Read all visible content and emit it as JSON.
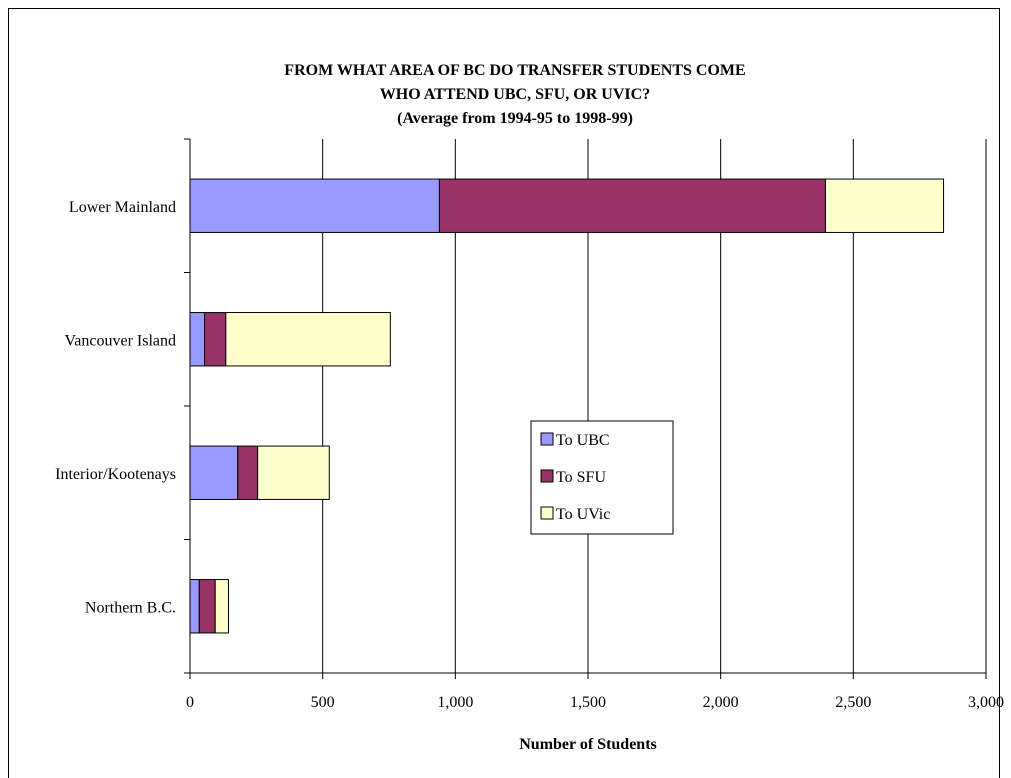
{
  "chart_data": {
    "type": "bar",
    "orientation": "horizontal",
    "stacked": true,
    "title_lines": [
      "FROM WHAT AREA OF BC DO TRANSFER STUDENTS COME",
      "WHO ATTEND UBC, SFU, OR UVIC?",
      "(Average from 1994-95 to 1998-99)"
    ],
    "xlabel": "Number of Students",
    "ylabel": "",
    "xlim": [
      0,
      3000
    ],
    "xticks": [
      0,
      500,
      1000,
      1500,
      2000,
      2500,
      3000
    ],
    "xtick_labels": [
      "0",
      "500",
      "1,000",
      "1,500",
      "2,000",
      "2,500",
      "3,000"
    ],
    "categories": [
      "Lower Mainland",
      "Vancouver Island",
      "Interior/Kootenays",
      "Northern B.C."
    ],
    "series": [
      {
        "name": "To UBC",
        "color": "#9999ff",
        "values": [
          940,
          55,
          180,
          35
        ]
      },
      {
        "name": "To SFU",
        "color": "#993366",
        "values": [
          1455,
          80,
          75,
          60
        ]
      },
      {
        "name": "To UVic",
        "color": "#ffffcc",
        "values": [
          445,
          620,
          270,
          50
        ]
      }
    ],
    "grid": "vertical",
    "legend_position": "center-right"
  }
}
